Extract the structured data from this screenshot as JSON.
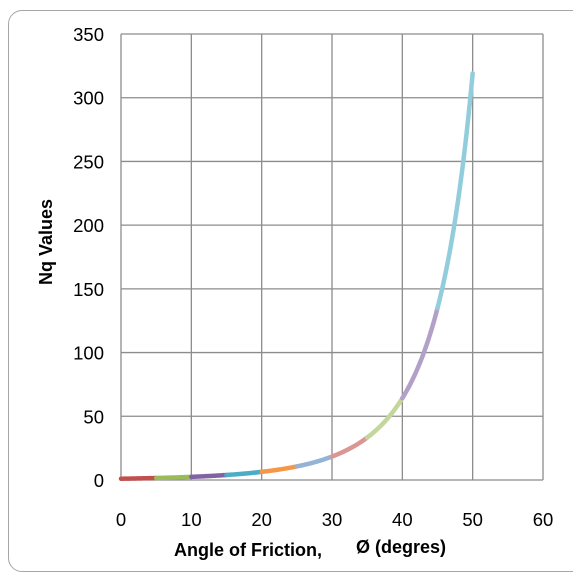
{
  "chart_data": {
    "type": "line",
    "xlabel": "Angle of Friction,",
    "xlabel_symbol": "Ø (degres)",
    "ylabel": "Nq Values",
    "xlim": [
      0,
      60
    ],
    "ylim": [
      0,
      350
    ],
    "x_ticks": [
      "0",
      "10",
      "20",
      "30",
      "40",
      "50",
      "60"
    ],
    "y_ticks": [
      "0",
      "50",
      "100",
      "150",
      "200",
      "250",
      "300",
      "350"
    ],
    "grid": true,
    "legend": "none",
    "series": [
      {
        "x": [
          0,
          5
        ],
        "values": [
          1.0,
          1.57
        ],
        "color": "#c0504d"
      },
      {
        "x": [
          5,
          10
        ],
        "values": [
          1.57,
          2.47
        ],
        "color": "#9bbb59"
      },
      {
        "x": [
          10,
          15
        ],
        "values": [
          2.47,
          3.94
        ],
        "color": "#8064a2"
      },
      {
        "x": [
          15,
          20
        ],
        "values": [
          3.94,
          6.4
        ],
        "color": "#4bacc6"
      },
      {
        "x": [
          20,
          25
        ],
        "values": [
          6.4,
          10.66
        ],
        "color": "#f79646"
      },
      {
        "x": [
          25,
          30
        ],
        "values": [
          10.66,
          18.4
        ],
        "color": "#95b3d7"
      },
      {
        "x": [
          30,
          35
        ],
        "values": [
          18.4,
          33.3
        ],
        "color": "#da9694"
      },
      {
        "x": [
          35,
          40
        ],
        "values": [
          33.3,
          64.2
        ],
        "color": "#c3d69b"
      },
      {
        "x": [
          40,
          45
        ],
        "values": [
          64.2,
          134.9
        ],
        "color": "#b1a0c7"
      },
      {
        "x": [
          45,
          50
        ],
        "values": [
          134.9,
          319.1
        ],
        "color": "#92cddc"
      }
    ]
  }
}
